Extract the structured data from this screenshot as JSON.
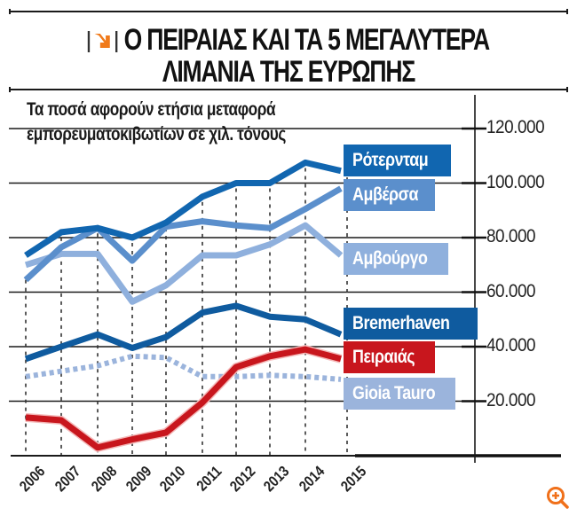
{
  "header": {
    "title_line1": "Ο ΠΕΙΡΑΙΑΣ ΚΑΙ ΤΑ 5 ΜΕΓΑΛΥΤΕΡΑ",
    "title_line2": "ΛΙΜΑΝΙΑ ΤΗΣ ΕΥΡΩΠΗΣ",
    "icon": "orange-arrow-icon",
    "subtitle_line1": "Τα ποσά αφορούν ετήσια μεταφορά",
    "subtitle_line2": "εμπορευματοκιβωτίων σε χιλ. τόνους"
  },
  "colors": {
    "rotterdam": "#1166b0",
    "antwerp": "#5b8fcc",
    "hamburg": "#8fb0dd",
    "bremerhaven": "#0f5b9f",
    "piraeus": "#c8161d",
    "gioia_tauro": "#9bb4dc",
    "accent_icon": "#f07a1a",
    "grid": "#1a1a1a"
  },
  "controls": {
    "zoom_icon": "zoom-in-icon"
  },
  "chart_data": {
    "type": "line",
    "title": "Ο ΠΕΙΡΑΙΑΣ ΚΑΙ ΤΑ 5 ΜΕΓΑΛΥΤΕΡΑ ΛΙΜΑΝΙΑ ΤΗΣ ΕΥΡΩΠΗΣ",
    "subtitle": "Τα ποσά αφορούν ετήσια μεταφορά εμπορευματοκιβωτίων σε χιλ. τόνους",
    "xlabel": "",
    "ylabel": "",
    "x": [
      "2006",
      "2007",
      "2008",
      "2009",
      "2010",
      "2011",
      "2012",
      "2013",
      "2014",
      "2015"
    ],
    "ylim": [
      0,
      120000
    ],
    "yticks": [
      "120.000",
      "100.000",
      "80.000",
      "60.000",
      "40.000",
      "20.000"
    ],
    "ytick_values": [
      120000,
      100000,
      80000,
      60000,
      40000,
      20000
    ],
    "grid": true,
    "legend_position": "right (inline labels)",
    "series": [
      {
        "name": "Ρότερνταμ",
        "key": "rotterdam",
        "style": "solid",
        "values": [
          73500,
          82000,
          83500,
          80000,
          85500,
          95000,
          100000,
          100000,
          107500,
          104500
        ]
      },
      {
        "name": "Αμβέρσα",
        "key": "antwerp",
        "style": "solid",
        "values": [
          64500,
          76500,
          83500,
          71500,
          84000,
          86000,
          84500,
          83500,
          90500,
          98000
        ]
      },
      {
        "name": "Αμβούργο",
        "key": "hamburg",
        "style": "solid",
        "values": [
          70000,
          74000,
          74000,
          56500,
          62500,
          73500,
          73500,
          77500,
          84500,
          73500
        ]
      },
      {
        "name": "Bremerhaven",
        "key": "bremerhaven",
        "style": "solid",
        "values": [
          35500,
          40000,
          44500,
          39500,
          43500,
          52500,
          55000,
          51000,
          50000,
          44500
        ]
      },
      {
        "name": "Πειραιάς",
        "key": "piraeus",
        "style": "solid",
        "values": [
          14000,
          13000,
          3000,
          6000,
          8500,
          19500,
          32500,
          36500,
          39000,
          35500
        ]
      },
      {
        "name": "Gioia Tauro",
        "key": "gioia_tauro",
        "style": "dotted",
        "values": [
          29000,
          31000,
          33000,
          36500,
          36000,
          29000,
          29000,
          29500,
          29000,
          28000
        ]
      }
    ]
  }
}
